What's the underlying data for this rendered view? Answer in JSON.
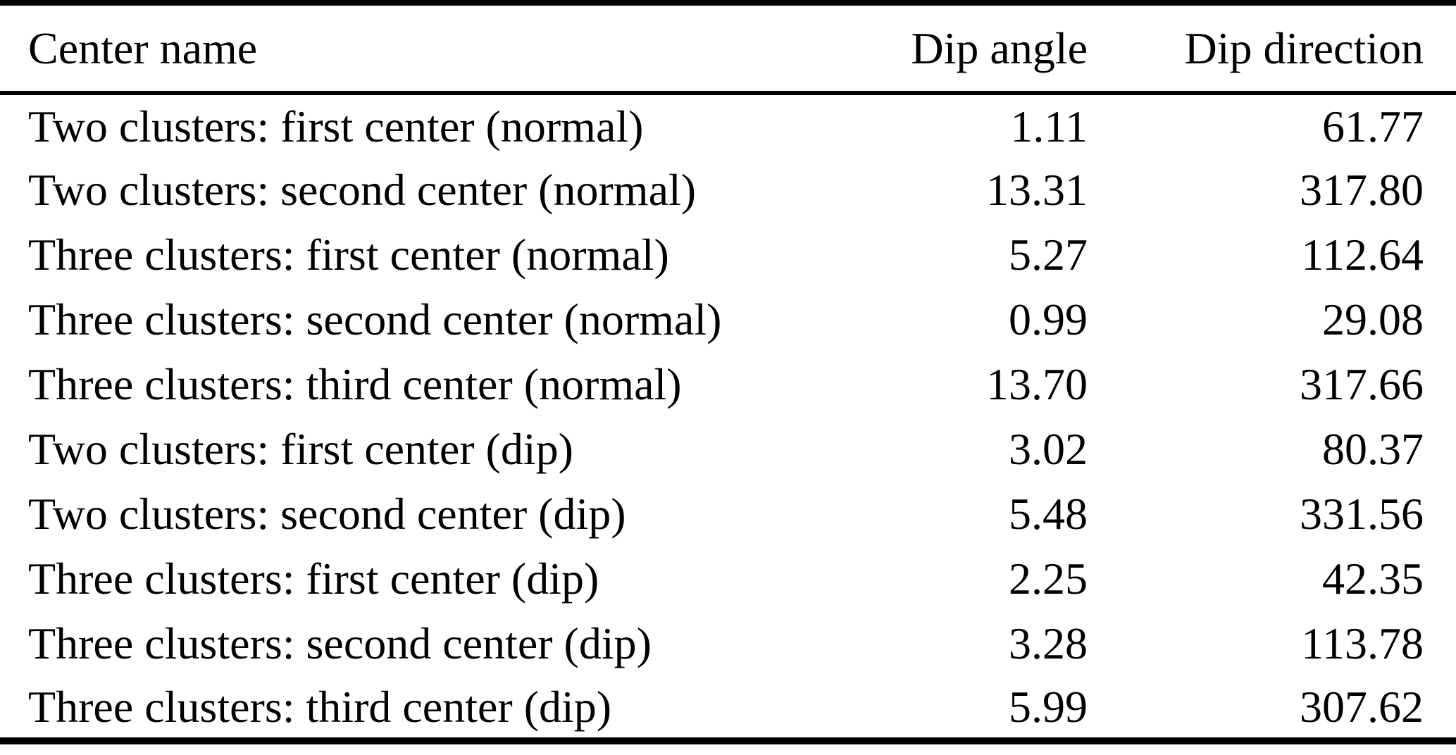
{
  "table": {
    "columns": {
      "name": "Center name",
      "dip_angle": "Dip angle",
      "dip_direction": "Dip direction"
    },
    "rows": [
      {
        "name": "Two clusters: first center (normal)",
        "dip_angle": "1.11",
        "dip_direction": "61.77"
      },
      {
        "name": "Two clusters: second center (normal)",
        "dip_angle": "13.31",
        "dip_direction": "317.80"
      },
      {
        "name": "Three clusters: first center (normal)",
        "dip_angle": "5.27",
        "dip_direction": "112.64"
      },
      {
        "name": "Three clusters: second center (normal)",
        "dip_angle": "0.99",
        "dip_direction": "29.08"
      },
      {
        "name": "Three clusters: third center (normal)",
        "dip_angle": "13.70",
        "dip_direction": "317.66"
      },
      {
        "name": "Two clusters: first center (dip)",
        "dip_angle": "3.02",
        "dip_direction": "80.37"
      },
      {
        "name": "Two clusters: second center (dip)",
        "dip_angle": "5.48",
        "dip_direction": "331.56"
      },
      {
        "name": "Three clusters: first center (dip)",
        "dip_angle": "2.25",
        "dip_direction": "42.35"
      },
      {
        "name": "Three clusters: second center (dip)",
        "dip_angle": "3.28",
        "dip_direction": "113.78"
      },
      {
        "name": "Three clusters: third center (dip)",
        "dip_angle": "5.99",
        "dip_direction": "307.62"
      }
    ]
  },
  "chart_data": {
    "type": "table",
    "title": "",
    "columns": [
      "Center name",
      "Dip angle",
      "Dip direction"
    ],
    "rows": [
      [
        "Two clusters: first center (normal)",
        1.11,
        61.77
      ],
      [
        "Two clusters: second center (normal)",
        13.31,
        317.8
      ],
      [
        "Three clusters: first center (normal)",
        5.27,
        112.64
      ],
      [
        "Three clusters: second center (normal)",
        0.99,
        29.08
      ],
      [
        "Three clusters: third center (normal)",
        13.7,
        317.66
      ],
      [
        "Two clusters: first center (dip)",
        3.02,
        80.37
      ],
      [
        "Two clusters: second center (dip)",
        5.48,
        331.56
      ],
      [
        "Three clusters: first center (dip)",
        2.25,
        42.35
      ],
      [
        "Three clusters: second center (dip)",
        3.28,
        113.78
      ],
      [
        "Three clusters: third center (dip)",
        5.99,
        307.62
      ]
    ]
  },
  "colors": {
    "text": "#000000",
    "background": "#ffffff",
    "rule": "#000000"
  }
}
